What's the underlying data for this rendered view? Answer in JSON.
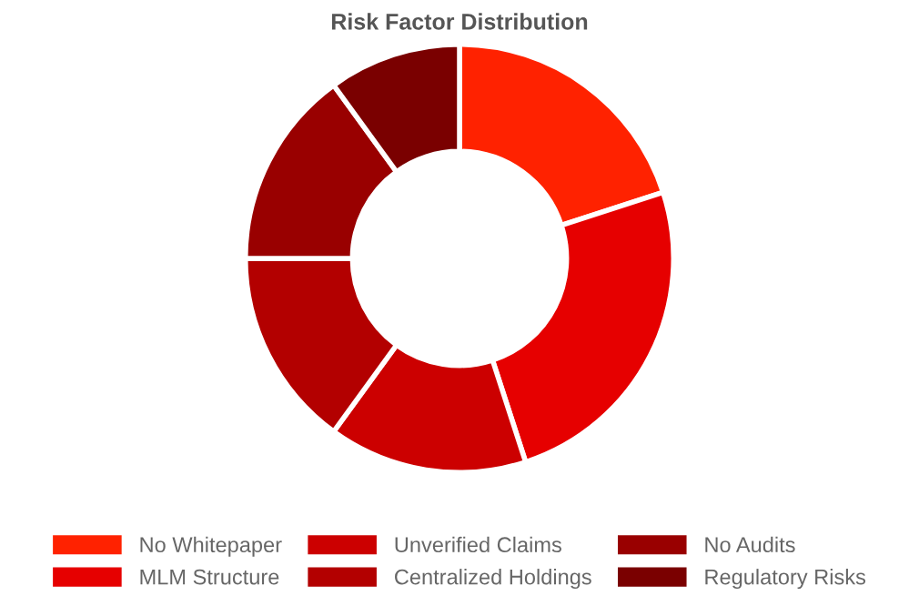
{
  "chart_data": {
    "type": "donut",
    "title": "Risk Factor Distribution",
    "categories": [
      "No Whitepaper",
      "MLM Structure",
      "Unverified Claims",
      "Centralized Holdings",
      "No Audits",
      "Regulatory Risks"
    ],
    "values": [
      20,
      25,
      15,
      15,
      15,
      10
    ],
    "colors": [
      "#ff2200",
      "#e60000",
      "#cc0000",
      "#b30000",
      "#990000",
      "#7a0000"
    ],
    "legend": "bottom"
  }
}
